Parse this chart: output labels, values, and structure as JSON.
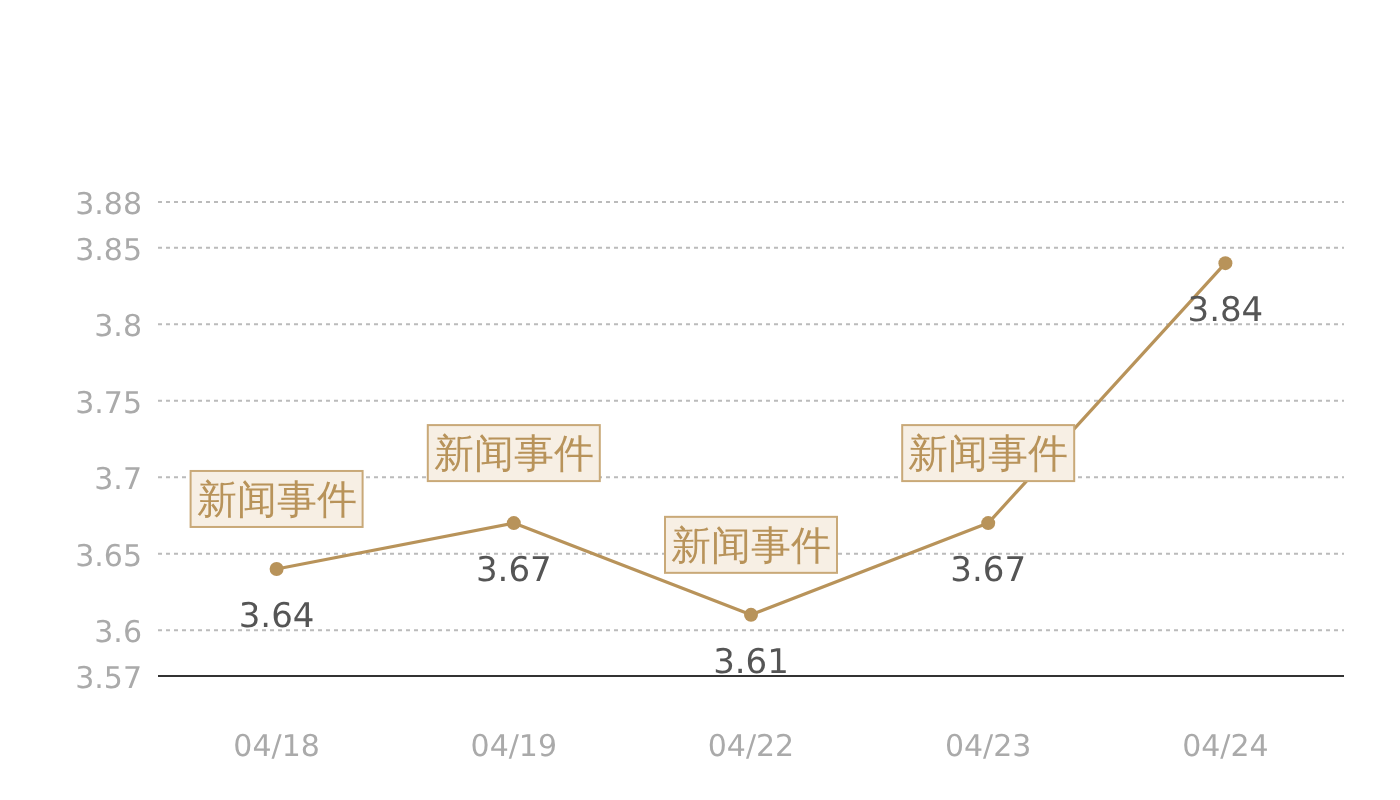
{
  "chart_data": {
    "type": "line",
    "categories": [
      "04/18",
      "04/19",
      "04/22",
      "04/23",
      "04/24"
    ],
    "series": [
      {
        "color": "#b8935a",
        "values": [
          3.64,
          3.67,
          3.61,
          3.67,
          3.84
        ]
      }
    ],
    "ylim": [
      3.57,
      3.88
    ],
    "yticks": [
      3.57,
      3.6,
      3.65,
      3.7,
      3.75,
      3.8,
      3.85,
      3.88
    ],
    "grid": "y",
    "marker": "circle",
    "line_style": "solid",
    "data_labels": true,
    "annotations": [
      {
        "text": "新闻事件",
        "x": "04/18",
        "y": 3.64
      },
      {
        "text": "新闻事件",
        "x": "04/19",
        "y": 3.67
      },
      {
        "text": "新闻事件",
        "x": "04/22",
        "y": 3.61
      },
      {
        "text": "新闻事件",
        "x": "04/23",
        "y": 3.67
      }
    ]
  }
}
